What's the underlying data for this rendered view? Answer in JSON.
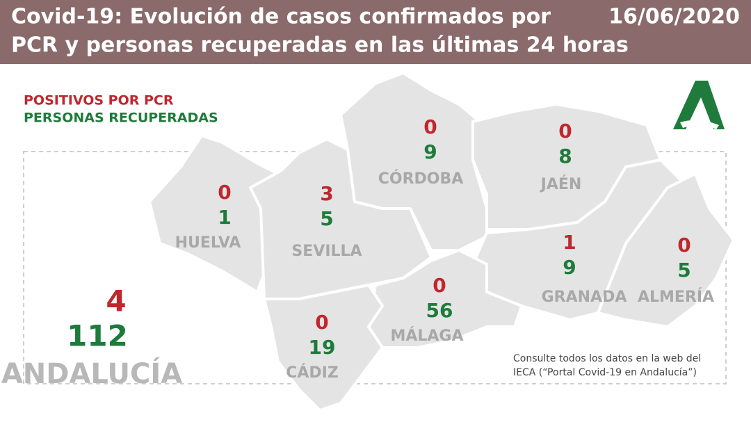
{
  "header": {
    "title_lines": [
      "Covid-19: Evolución de casos confirmados por",
      "PCR y personas recuperadas en las últimas 24 horas"
    ],
    "date": "16/06/2020"
  },
  "legend": {
    "positive": "POSITIVOS POR PCR",
    "recovered": "PERSONAS RECUPERADAS"
  },
  "provinces": [
    {
      "name": "HUELVA",
      "positive": 0,
      "recovered": 1
    },
    {
      "name": "SEVILLA",
      "positive": 3,
      "recovered": 5
    },
    {
      "name": "CÓRDOBA",
      "positive": 0,
      "recovered": 9
    },
    {
      "name": "JAÉN",
      "positive": 0,
      "recovered": 8
    },
    {
      "name": "GRANADA",
      "positive": 1,
      "recovered": 9
    },
    {
      "name": "ALMERÍA",
      "positive": 0,
      "recovered": 5
    },
    {
      "name": "MÁLAGA",
      "positive": 0,
      "recovered": 56
    },
    {
      "name": "CÁDIZ",
      "positive": 0,
      "recovered": 19
    }
  ],
  "total": {
    "name": "ANDALUCÍA",
    "positive": 4,
    "recovered": 112
  },
  "note_lines": [
    "Consulte todos los datos en la web del",
    "IECA (“Portal Covid-19 en Andalucía”)"
  ]
}
